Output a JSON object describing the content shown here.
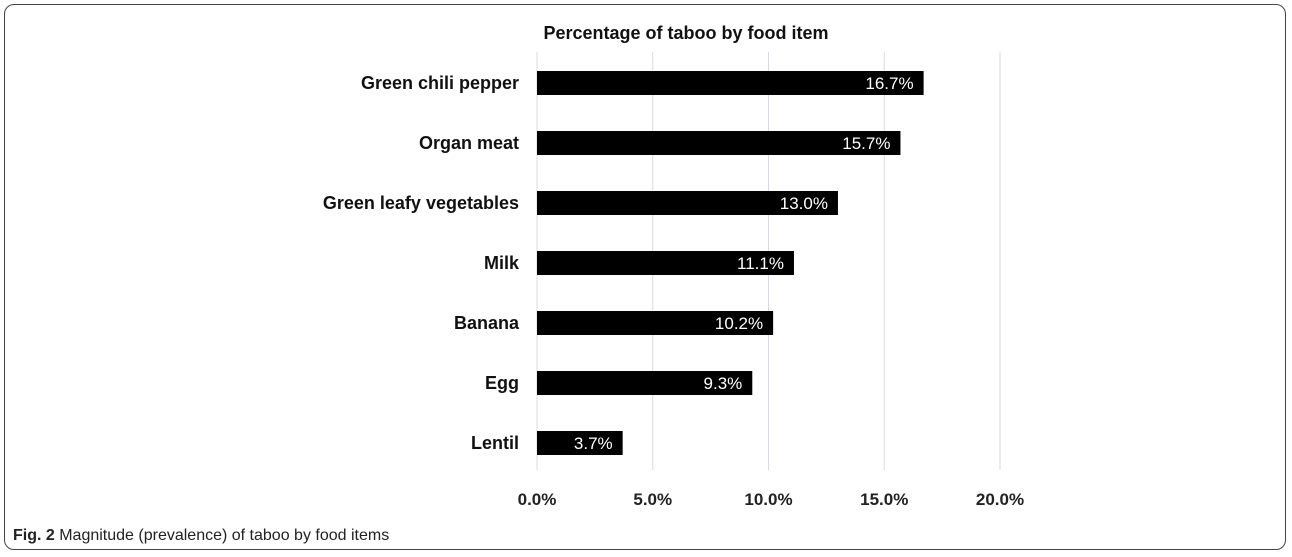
{
  "chart_data": {
    "type": "bar",
    "orientation": "horizontal",
    "title": "Percentage of taboo by food item",
    "categories": [
      "Green chili pepper",
      "Organ meat",
      "Green leafy vegetables",
      "Milk",
      "Banana",
      "Egg",
      "Lentil"
    ],
    "values": [
      16.7,
      15.7,
      13.0,
      11.1,
      10.2,
      9.3,
      3.7
    ],
    "data_labels": [
      "16.7%",
      "15.7%",
      "13.0%",
      "11.1%",
      "10.2%",
      "9.3%",
      "3.7%"
    ],
    "xlim": [
      0,
      20
    ],
    "x_ticks": [
      "0.0%",
      "5.0%",
      "10.0%",
      "15.0%",
      "20.0%"
    ],
    "grid": true,
    "bar_color": "#000000",
    "label_color": "#ffffff",
    "grid_color": "#d9d9e3"
  },
  "caption": {
    "label": "Fig. 2",
    "text": " Magnitude (prevalence) of taboo by food items"
  }
}
